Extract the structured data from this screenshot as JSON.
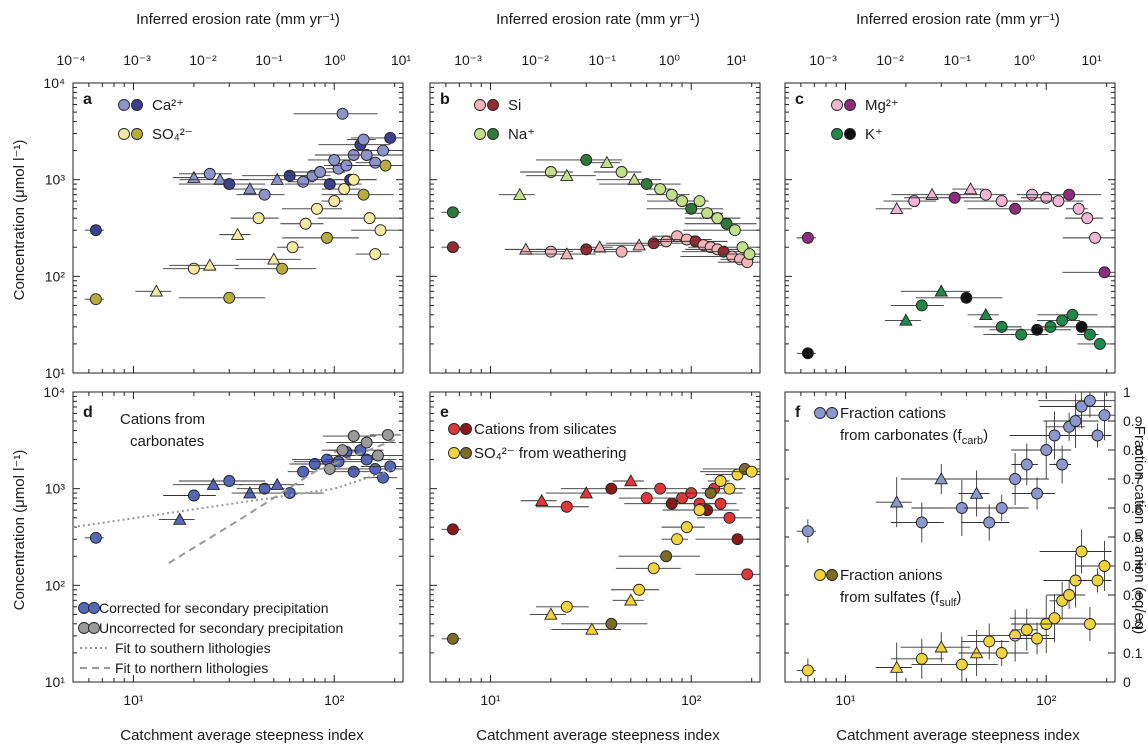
{
  "figure": {
    "top_axis_label": "Inferred erosion rate (mm yr⁻¹)",
    "bottom_axis_label": "Catchment average steepness index",
    "left_axis_label": "Concentration (μmol l⁻¹)",
    "right_axis_label": "Fraction cation or anion (eq/eq)",
    "top_ticks_left": [
      "10⁻⁴",
      "10⁻³",
      "10⁻²",
      "10⁻¹",
      "10⁰",
      "10¹"
    ],
    "top_ticks": [
      "10⁻³",
      "10⁻²",
      "10⁻¹",
      "10⁰",
      "10¹"
    ],
    "bottom_ticks": [
      "10¹",
      "10²"
    ],
    "left_ticks": [
      "10¹",
      "10²",
      "10³",
      "10⁴"
    ],
    "right_ticks": [
      "0",
      "0.1",
      "0.2",
      "0.3",
      "0.4",
      "0.5",
      "0.6",
      "0.7",
      "0.8",
      "0.9",
      "1"
    ]
  },
  "panels": {
    "a": {
      "letter": "a",
      "legend": [
        "Ca²⁺",
        "SO₄²⁻"
      ]
    },
    "b": {
      "letter": "b",
      "legend": [
        "Si",
        "Na⁺"
      ]
    },
    "c": {
      "letter": "c",
      "legend": [
        "Mg²⁺",
        "K⁺"
      ]
    },
    "d": {
      "letter": "d",
      "title_line1": "Cations from",
      "title_line2": "carbonates",
      "legend": [
        "Corrected for secondary precipitation",
        "Uncorrected for secondary precipitation",
        "Fit to southern lithologies",
        "Fit to northern lithologies"
      ]
    },
    "e": {
      "letter": "e",
      "legend": [
        "Cations from silicates",
        "SO₄²⁻ from weathering"
      ]
    },
    "f": {
      "letter": "f",
      "legend1_line1": "Fraction cations",
      "legend1_line2": "from carbonates (f",
      "legend1_sub": "carb",
      "legend2_line1": "Fraction anions",
      "legend2_line2": "from sulfates (f",
      "legend2_sub": "sulf"
    }
  },
  "colors": {
    "ca": "#8f93cc",
    "ca_dark": "#3d3f8f",
    "so4": "#f2eaa0",
    "so4_dark": "#b7ad3d",
    "si": "#f1b4b8",
    "si_dark": "#8f2d33",
    "na": "#c3df8a",
    "na_dark": "#2f7a3a",
    "mg": "#f2b6d4",
    "mg_dark": "#8e2c7e",
    "k": "#1f8a48",
    "k_dark": "#111111",
    "carb": "#5568b8",
    "carb_grey": "#9a9a9a",
    "sil": "#e0383a",
    "sil_dark": "#8a1a1a",
    "sulf": "#f4d43a",
    "sulf_dark": "#7d6b28",
    "fcarb": "#8c96cf",
    "fsulf": "#f1d43c"
  },
  "chart_data": [
    {
      "type": "scatter",
      "panel": "a",
      "x_scale": "log",
      "xlim": [
        5,
        220
      ],
      "y_scale": "log",
      "ylim": [
        10,
        10000
      ],
      "series": [
        {
          "name": "Ca²⁺",
          "x": [
            6.5,
            20,
            24,
            27,
            30,
            38,
            45,
            52,
            60,
            70,
            78,
            85,
            95,
            105,
            115,
            125,
            135,
            145,
            160,
            175,
            190,
            110,
            140,
            100,
            120
          ],
          "y": [
            300,
            1050,
            1150,
            1000,
            900,
            800,
            700,
            1000,
            1100,
            950,
            1100,
            1200,
            900,
            1300,
            1400,
            1800,
            2300,
            1800,
            1500,
            2000,
            2700,
            4800,
            2600,
            1600,
            1000
          ]
        },
        {
          "name": "SO₄²⁻",
          "x": [
            6.5,
            13,
            20,
            24,
            30,
            33,
            42,
            50,
            55,
            62,
            72,
            82,
            92,
            100,
            112,
            125,
            140,
            150,
            160,
            170,
            180
          ],
          "y": [
            58,
            70,
            120,
            130,
            60,
            270,
            400,
            150,
            120,
            200,
            350,
            500,
            250,
            600,
            800,
            1000,
            700,
            400,
            170,
            300,
            1400
          ]
        }
      ]
    },
    {
      "type": "scatter",
      "panel": "b",
      "x_scale": "log",
      "xlim": [
        5,
        220
      ],
      "y_scale": "log",
      "ylim": [
        10,
        10000
      ],
      "series": [
        {
          "name": "Si",
          "x": [
            6.5,
            15,
            20,
            24,
            30,
            35,
            45,
            55,
            65,
            75,
            85,
            95,
            105,
            115,
            125,
            135,
            145,
            160,
            175,
            190
          ],
          "y": [
            200,
            190,
            180,
            170,
            190,
            200,
            180,
            210,
            220,
            230,
            260,
            240,
            230,
            210,
            200,
            190,
            180,
            160,
            150,
            140
          ]
        },
        {
          "name": "Na⁺",
          "x": [
            6.5,
            14,
            20,
            24,
            30,
            38,
            45,
            52,
            60,
            70,
            80,
            90,
            100,
            110,
            120,
            135,
            150,
            165,
            180,
            195
          ],
          "y": [
            460,
            700,
            1200,
            1100,
            1600,
            1500,
            1200,
            1000,
            900,
            800,
            700,
            600,
            500,
            600,
            450,
            400,
            350,
            300,
            200,
            170
          ]
        }
      ]
    },
    {
      "type": "scatter",
      "panel": "c",
      "x_scale": "log",
      "xlim": [
        5,
        220
      ],
      "y_scale": "log",
      "ylim": [
        10,
        10000
      ],
      "series": [
        {
          "name": "Mg²⁺",
          "x": [
            6.5,
            18,
            22,
            27,
            35,
            42,
            50,
            60,
            70,
            85,
            100,
            115,
            130,
            145,
            160,
            175,
            195
          ],
          "y": [
            250,
            500,
            600,
            700,
            650,
            800,
            700,
            600,
            500,
            700,
            650,
            600,
            700,
            500,
            400,
            250,
            110
          ]
        },
        {
          "name": "K⁺",
          "x": [
            6.5,
            20,
            24,
            30,
            40,
            50,
            60,
            75,
            90,
            105,
            120,
            135,
            150,
            165,
            185
          ],
          "y": [
            16,
            35,
            50,
            70,
            60,
            40,
            30,
            25,
            28,
            30,
            35,
            40,
            30,
            25,
            20
          ]
        }
      ]
    },
    {
      "type": "scatter",
      "panel": "d",
      "x_scale": "log",
      "xlim": [
        5,
        220
      ],
      "y_scale": "log",
      "ylim": [
        10,
        10000
      ],
      "series": [
        {
          "name": "Corrected for secondary precipitation",
          "x": [
            6.5,
            17,
            20,
            25,
            30,
            38,
            45,
            52,
            60,
            70,
            80,
            92,
            105,
            115,
            125,
            135,
            145,
            160,
            175,
            190
          ],
          "y": [
            310,
            480,
            850,
            1100,
            1200,
            900,
            1000,
            1100,
            900,
            1500,
            1800,
            2000,
            1900,
            2400,
            1500,
            2500,
            2000,
            1600,
            1300,
            1700
          ]
        },
        {
          "name": "Uncorrected for secondary precipitation",
          "x": [
            95,
            110,
            125,
            145,
            165,
            185
          ],
          "y": [
            1600,
            2500,
            3500,
            3000,
            2200,
            3600
          ]
        },
        {
          "name": "Fit to southern lithologies",
          "x": [
            5,
            100,
            200
          ],
          "y": [
            400,
            1000,
            1600
          ]
        },
        {
          "name": "Fit to northern lithologies",
          "x": [
            15,
            35,
            80,
            200
          ],
          "y": [
            170,
            500,
            1500,
            3200
          ]
        }
      ]
    },
    {
      "type": "scatter",
      "panel": "e",
      "x_scale": "log",
      "xlim": [
        5,
        220
      ],
      "y_scale": "log",
      "ylim": [
        10,
        10000
      ],
      "series": [
        {
          "name": "Cations from silicates",
          "x": [
            6.5,
            18,
            24,
            30,
            40,
            50,
            60,
            70,
            80,
            90,
            100,
            110,
            120,
            130,
            140,
            155,
            170,
            190
          ],
          "y": [
            380,
            750,
            650,
            900,
            1000,
            1200,
            800,
            1000,
            700,
            800,
            900,
            700,
            600,
            1000,
            700,
            500,
            300,
            130
          ]
        },
        {
          "name": "SO₄²⁻ from weathering",
          "x": [
            6.5,
            20,
            24,
            32,
            40,
            50,
            55,
            65,
            75,
            85,
            95,
            110,
            125,
            140,
            155,
            170,
            185,
            200
          ],
          "y": [
            28,
            50,
            60,
            35,
            40,
            70,
            90,
            150,
            200,
            300,
            400,
            600,
            900,
            1200,
            1000,
            1400,
            1600,
            1500
          ]
        }
      ]
    },
    {
      "type": "scatter",
      "panel": "f",
      "x_scale": "log",
      "xlim": [
        5,
        220
      ],
      "y_scale": "linear",
      "ylim": [
        0,
        1
      ],
      "series": [
        {
          "name": "Fraction cations from carbonates (f_carb)",
          "x": [
            6.5,
            18,
            24,
            30,
            38,
            45,
            52,
            60,
            70,
            80,
            90,
            100,
            110,
            120,
            130,
            140,
            150,
            165,
            180,
            195
          ],
          "y": [
            0.52,
            0.62,
            0.55,
            0.7,
            0.6,
            0.65,
            0.55,
            0.6,
            0.7,
            0.75,
            0.65,
            0.8,
            0.85,
            0.75,
            0.88,
            0.9,
            0.95,
            0.97,
            0.85,
            0.92
          ]
        },
        {
          "name": "Fraction anions from sulfates (f_sulf)",
          "x": [
            6.5,
            18,
            24,
            30,
            38,
            45,
            52,
            60,
            70,
            80,
            90,
            100,
            110,
            120,
            130,
            140,
            150,
            165,
            180,
            195
          ],
          "y": [
            0.04,
            0.05,
            0.08,
            0.12,
            0.06,
            0.1,
            0.14,
            0.1,
            0.16,
            0.18,
            0.15,
            0.2,
            0.22,
            0.28,
            0.3,
            0.35,
            0.45,
            0.2,
            0.35,
            0.4
          ]
        }
      ]
    }
  ]
}
